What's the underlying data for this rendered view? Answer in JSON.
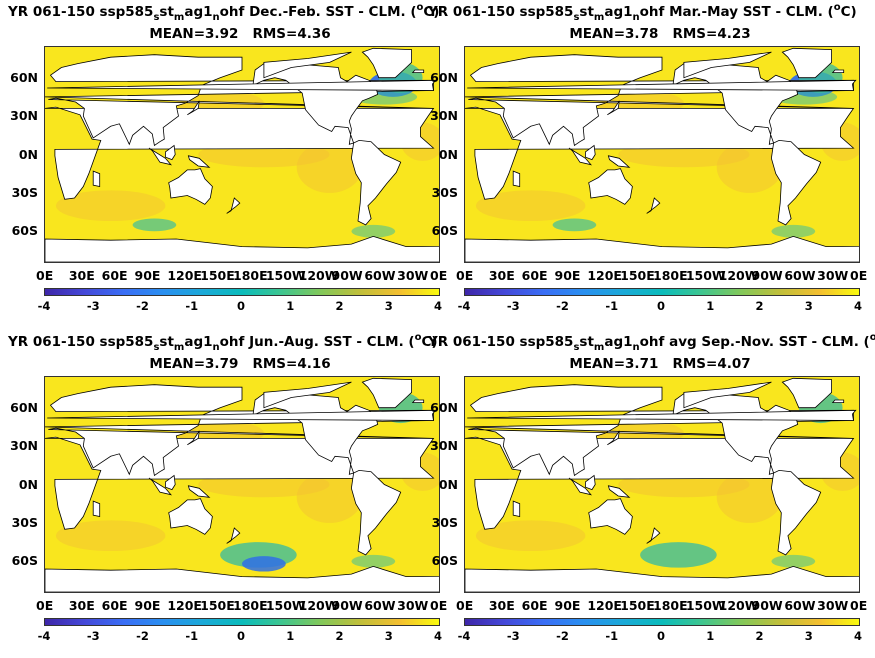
{
  "panels": [
    {
      "title_pre": "YR 061-150 ssp585",
      "sub1": "s",
      "mid1": "st",
      "sub2": "m",
      "mid2": "ag1",
      "sub3": "n",
      "title_post": "ohf  Dec.-Feb. SST - CLM. (",
      "sup": "o",
      "title_end": "C)",
      "mean": "MEAN=3.92",
      "rms": "RMS=4.36"
    },
    {
      "title_pre": "YR 061-150 ssp585",
      "sub1": "s",
      "mid1": "st",
      "sub2": "m",
      "mid2": "ag1",
      "sub3": "n",
      "title_post": "ohf Mar.-May SST - CLM. (",
      "sup": "o",
      "title_end": "C)",
      "mean": "MEAN=3.78",
      "rms": "RMS=4.23"
    },
    {
      "title_pre": "YR 061-150 ssp585",
      "sub1": "s",
      "mid1": "st",
      "sub2": "m",
      "mid2": "ag1",
      "sub3": "n",
      "title_post": "ohf Jun.-Aug. SST - CLM. (",
      "sup": "o",
      "title_end": "C)",
      "mean": "MEAN=3.79",
      "rms": "RMS=4.16"
    },
    {
      "title_pre": "YR 061-150 ssp585",
      "sub1": "s",
      "mid1": "st",
      "sub2": "m",
      "mid2": "ag1",
      "sub3": "n",
      "title_post": "ohf avg Sep.-Nov. SST - CLM. (",
      "sup": "o",
      "title_end": "C)",
      "mean": "MEAN=3.71",
      "rms": "RMS=4.07"
    }
  ],
  "lat_labels": [
    "60N",
    "30N",
    "0N",
    "30S",
    "60S"
  ],
  "lon_labels": [
    "0E",
    "30E",
    "60E",
    "90E",
    "120E",
    "150E",
    "180E",
    "150W",
    "120W",
    "90W",
    "60W",
    "30W",
    "0E"
  ],
  "colorbar": {
    "ticks": [
      "-4",
      "-3",
      "-2",
      "-1",
      "0",
      "1",
      "2",
      "3",
      "4"
    ],
    "range": [
      -4,
      4
    ],
    "colormap": "parula"
  },
  "colors": {
    "ocean_warm": "#f9e61e",
    "ocean_mid": "#f4c231",
    "ocean_cool": "#3fbd9c",
    "ocean_cold": "#2f6fe8",
    "land": "#ffffff",
    "coast": "#000000"
  }
}
